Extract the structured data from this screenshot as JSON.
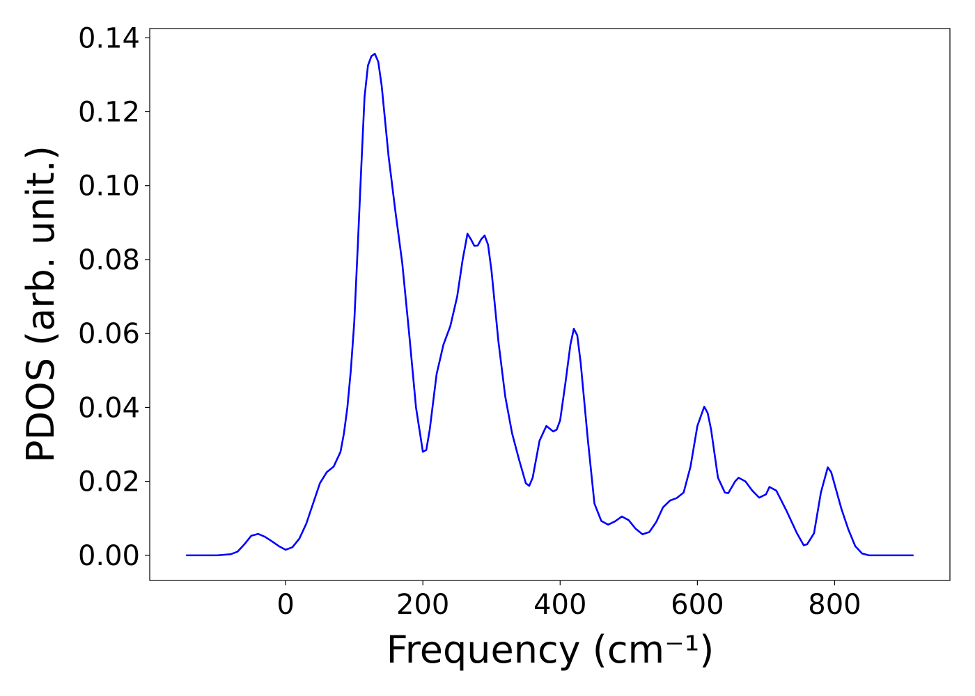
{
  "chart_data": {
    "type": "line",
    "xlabel": "Frequency (cm⁻¹)",
    "ylabel": "PDOS (arb. unit.)",
    "xlim": [
      -198,
      968
    ],
    "ylim": [
      -0.0068,
      0.1425
    ],
    "xticks": [
      0,
      200,
      400,
      600,
      800
    ],
    "yticks": [
      {
        "value": 0,
        "label": "0.00"
      },
      {
        "value": 0.02,
        "label": "0.02"
      },
      {
        "value": 0.04,
        "label": "0.04"
      },
      {
        "value": 0.06,
        "label": "0.06"
      },
      {
        "value": 0.08,
        "label": "0.08"
      },
      {
        "value": 0.1,
        "label": "0.10"
      },
      {
        "value": 0.12,
        "label": "0.12"
      },
      {
        "value": 0.14,
        "label": "0.14"
      }
    ],
    "grid": false,
    "x": [
      -145,
      -100,
      -80,
      -70,
      -60,
      -50,
      -40,
      -30,
      -20,
      -10,
      0,
      10,
      20,
      30,
      40,
      50,
      60,
      70,
      80,
      85,
      90,
      95,
      100,
      105,
      110,
      115,
      120,
      125,
      130,
      135,
      140,
      150,
      160,
      170,
      180,
      190,
      200,
      205,
      210,
      220,
      230,
      240,
      250,
      258,
      265,
      270,
      275,
      280,
      285,
      290,
      295,
      300,
      310,
      320,
      330,
      340,
      350,
      355,
      360,
      370,
      380,
      390,
      395,
      400,
      408,
      415,
      420,
      425,
      430,
      440,
      450,
      460,
      470,
      480,
      490,
      500,
      510,
      520,
      530,
      540,
      550,
      560,
      570,
      580,
      590,
      600,
      610,
      615,
      620,
      630,
      640,
      645,
      655,
      660,
      670,
      680,
      690,
      700,
      705,
      715,
      730,
      745,
      755,
      760,
      770,
      780,
      790,
      795,
      810,
      820,
      830,
      840,
      850,
      915
    ],
    "series": [
      {
        "color": "#0000ff",
        "values": [
          0,
          0,
          0.0003,
          0.001,
          0.003,
          0.0053,
          0.0058,
          0.005,
          0.0038,
          0.0025,
          0.0015,
          0.0022,
          0.0045,
          0.0085,
          0.014,
          0.0195,
          0.0225,
          0.024,
          0.028,
          0.033,
          0.04,
          0.05,
          0.063,
          0.083,
          0.104,
          0.124,
          0.1325,
          0.135,
          0.1357,
          0.1335,
          0.127,
          0.108,
          0.093,
          0.079,
          0.06,
          0.04,
          0.028,
          0.0285,
          0.034,
          0.049,
          0.057,
          0.062,
          0.07,
          0.08,
          0.087,
          0.0855,
          0.0837,
          0.0838,
          0.0855,
          0.0865,
          0.084,
          0.077,
          0.058,
          0.043,
          0.033,
          0.026,
          0.0195,
          0.0188,
          0.021,
          0.031,
          0.035,
          0.0335,
          0.034,
          0.0365,
          0.047,
          0.057,
          0.0613,
          0.0595,
          0.052,
          0.032,
          0.014,
          0.0093,
          0.0083,
          0.0092,
          0.0105,
          0.0095,
          0.0072,
          0.0057,
          0.0063,
          0.009,
          0.013,
          0.0148,
          0.0155,
          0.017,
          0.024,
          0.035,
          0.0402,
          0.0385,
          0.034,
          0.021,
          0.017,
          0.0168,
          0.02,
          0.021,
          0.02,
          0.0175,
          0.0156,
          0.0165,
          0.0185,
          0.0175,
          0.012,
          0.006,
          0.0027,
          0.003,
          0.006,
          0.017,
          0.0238,
          0.0225,
          0.0125,
          0.007,
          0.0025,
          0.0005,
          0,
          0
        ]
      }
    ]
  }
}
